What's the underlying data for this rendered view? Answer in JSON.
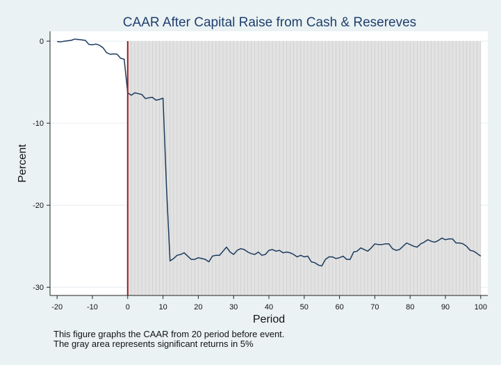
{
  "chart_data": {
    "type": "line",
    "title": "CAAR After Capital Raise from Cash & Resereves",
    "xlabel": "Period",
    "ylabel": "Percent",
    "xlim": [
      -22,
      102
    ],
    "ylim": [
      -31,
      1.2
    ],
    "xticks": [
      -20,
      -10,
      0,
      10,
      20,
      30,
      40,
      50,
      60,
      70,
      80,
      90,
      100
    ],
    "yticks": [
      0,
      -10,
      -20,
      -30
    ],
    "grid": true,
    "event_line_x": 0,
    "significant_region": {
      "x_start": 0,
      "x_end": 100
    },
    "series": [
      {
        "color": "#1a3a5c",
        "x": [
          -20,
          -19,
          -18,
          -17,
          -16,
          -15,
          -14,
          -13,
          -12,
          -11,
          -10,
          -9,
          -8,
          -7,
          -6,
          -5,
          -4,
          -3,
          -2,
          -1,
          0,
          1,
          2,
          3,
          4,
          5,
          6,
          7,
          8,
          9,
          10,
          11,
          12,
          13,
          14,
          15,
          16,
          17,
          18,
          19,
          20,
          21,
          22,
          23,
          24,
          25,
          26,
          27,
          28,
          29,
          30,
          31,
          32,
          33,
          34,
          35,
          36,
          37,
          38,
          39,
          40,
          41,
          42,
          43,
          44,
          45,
          46,
          47,
          48,
          49,
          50,
          51,
          52,
          53,
          54,
          55,
          56,
          57,
          58,
          59,
          60,
          61,
          62,
          63,
          64,
          65,
          66,
          67,
          68,
          69,
          70,
          71,
          72,
          73,
          74,
          75,
          76,
          77,
          78,
          79,
          80,
          81,
          82,
          83,
          84,
          85,
          86,
          87,
          88,
          89,
          90,
          91,
          92,
          93,
          94,
          95,
          96,
          97,
          98,
          99,
          100
        ],
        "y": [
          -0.05,
          -0.1,
          0.0,
          0.05,
          0.1,
          0.25,
          0.2,
          0.15,
          0.1,
          -0.4,
          -0.45,
          -0.35,
          -0.5,
          -0.8,
          -1.4,
          -1.6,
          -1.55,
          -1.6,
          -2.1,
          -2.2,
          -6.3,
          -6.6,
          -6.3,
          -6.4,
          -6.5,
          -7.0,
          -6.9,
          -6.85,
          -7.2,
          -7.1,
          -6.95,
          -18.0,
          -26.8,
          -26.5,
          -26.1,
          -26.0,
          -25.8,
          -26.2,
          -26.6,
          -26.6,
          -26.4,
          -26.5,
          -26.6,
          -26.9,
          -26.2,
          -26.1,
          -26.1,
          -25.6,
          -25.1,
          -25.7,
          -26.0,
          -25.5,
          -25.3,
          -25.4,
          -25.7,
          -25.9,
          -26.0,
          -25.7,
          -26.1,
          -26.0,
          -25.5,
          -25.4,
          -25.6,
          -25.5,
          -25.8,
          -25.7,
          -25.8,
          -26.0,
          -26.3,
          -26.1,
          -26.3,
          -26.2,
          -26.9,
          -27.0,
          -27.3,
          -27.4,
          -26.6,
          -26.3,
          -26.3,
          -26.5,
          -26.4,
          -26.2,
          -26.6,
          -26.6,
          -25.7,
          -25.6,
          -25.2,
          -25.4,
          -25.6,
          -25.2,
          -24.7,
          -24.8,
          -24.8,
          -24.7,
          -24.7,
          -25.3,
          -25.5,
          -25.4,
          -25.0,
          -24.6,
          -24.8,
          -25.0,
          -25.1,
          -24.7,
          -24.5,
          -24.2,
          -24.4,
          -24.5,
          -24.3,
          -24.0,
          -24.2,
          -24.1,
          -24.1,
          -24.6,
          -24.6,
          -24.7,
          -25.0,
          -25.5,
          -25.6,
          -25.9,
          -26.2
        ]
      }
    ],
    "notes": [
      "This figure graphs the CAAR from 20 period before event.",
      "The gray area represents significant returns in 5%"
    ],
    "colors": {
      "background": "#eaf2f3",
      "plot_area": "#ffffff",
      "shaded_fill": "#e2e2e2",
      "shaded_hatch": "#c8c8c8",
      "event_line": "#a01c1c",
      "grid": "#e8eef0"
    }
  }
}
